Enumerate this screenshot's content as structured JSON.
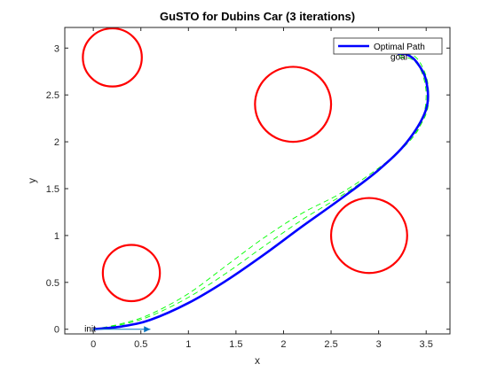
{
  "chart_data": {
    "type": "line",
    "title": "GuSTO for Dubins Car (3 iterations)",
    "xlabel": "x",
    "ylabel": "y",
    "xlim": [
      -0.3,
      3.75
    ],
    "ylim": [
      -0.05,
      3.22
    ],
    "xticks": [
      0,
      0.5,
      1,
      1.5,
      2,
      2.5,
      3,
      3.5
    ],
    "xtick_labels": [
      "0",
      "0.5",
      "1",
      "1.5",
      "2",
      "2.5",
      "3",
      "3.5"
    ],
    "yticks": [
      0,
      0.5,
      1,
      1.5,
      2,
      2.5,
      3
    ],
    "ytick_labels": [
      "0",
      "0.5",
      "1",
      "1.5",
      "2",
      "2.5",
      "3"
    ],
    "grid": false,
    "legend": {
      "placement": "top-right",
      "entries": [
        "Optimal Path"
      ]
    },
    "obstacles": [
      {
        "cx": 0.2,
        "cy": 2.9,
        "r": 0.31
      },
      {
        "cx": 2.1,
        "cy": 2.4,
        "r": 0.4
      },
      {
        "cx": 2.9,
        "cy": 1.0,
        "r": 0.4
      },
      {
        "cx": 0.4,
        "cy": 0.6,
        "r": 0.3
      }
    ],
    "series": [
      {
        "name": "Optimal Path",
        "style": "solid",
        "color": "#0000ff",
        "x": [
          0.0,
          0.3,
          0.6,
          1.0,
          1.4,
          1.8,
          2.2,
          2.6,
          3.0,
          3.3,
          3.5,
          3.5,
          3.4,
          3.3,
          3.2
        ],
        "y": [
          0.0,
          0.03,
          0.1,
          0.28,
          0.52,
          0.8,
          1.1,
          1.39,
          1.7,
          2.0,
          2.35,
          2.65,
          2.85,
          2.93,
          2.94
        ]
      },
      {
        "name": "",
        "style": "dashed",
        "color": "#00ff00",
        "x": [
          0.0,
          0.3,
          0.6,
          1.0,
          1.4,
          1.8,
          2.2,
          2.6,
          3.0,
          3.3,
          3.45,
          3.5,
          3.45,
          3.35,
          3.22
        ],
        "y": [
          0.0,
          0.06,
          0.16,
          0.38,
          0.68,
          0.98,
          1.24,
          1.45,
          1.72,
          1.98,
          2.2,
          2.5,
          2.75,
          2.88,
          2.9
        ]
      },
      {
        "name": "",
        "style": "dashed",
        "color": "#00ff00",
        "x": [
          0.0,
          0.3,
          0.6,
          1.0,
          1.4,
          1.8,
          2.2,
          2.6,
          3.0,
          3.3,
          3.5,
          3.52,
          3.45,
          3.35,
          3.22
        ],
        "y": [
          0.0,
          0.05,
          0.14,
          0.34,
          0.6,
          0.89,
          1.17,
          1.42,
          1.7,
          1.99,
          2.3,
          2.6,
          2.82,
          2.93,
          2.92
        ]
      }
    ],
    "markers": [
      {
        "label": "init",
        "x": 0.0,
        "y": 0.0,
        "dx": 0.6,
        "dy": 0.0,
        "color": "#0072bd"
      },
      {
        "label": "goal",
        "x": 3.2,
        "y": 3.0,
        "dx": -0.25,
        "dy": 0.1,
        "color": "#d95319"
      }
    ]
  }
}
